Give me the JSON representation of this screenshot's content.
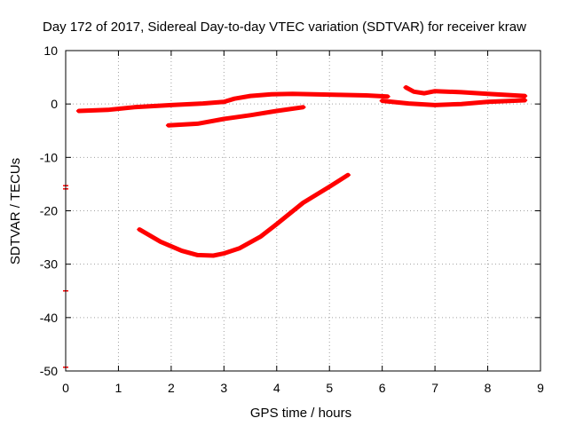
{
  "chart_data": {
    "type": "scatter",
    "title": "Day 172 of 2017, Sidereal Day-to-day VTEC variation (SDTVAR) for receiver kraw",
    "xlabel": "GPS time / hours",
    "ylabel": "SDTVAR / TECUs",
    "xlim": [
      0,
      9
    ],
    "ylim": [
      -50,
      10
    ],
    "xticks": [
      0,
      1,
      2,
      3,
      4,
      5,
      6,
      7,
      8,
      9
    ],
    "yticks": [
      10,
      0,
      -10,
      -20,
      -30,
      -40,
      -50
    ],
    "grid": true,
    "legend": "none",
    "color": "#ff0000",
    "series": [
      {
        "x": [
          0.25,
          0.8,
          1.3,
          2.0,
          2.6,
          3.0,
          3.2,
          3.5,
          3.9,
          4.3,
          4.7,
          5.2,
          5.7,
          6.1
        ],
        "y": [
          -1.3,
          -1.1,
          -0.6,
          -0.2,
          0.1,
          0.4,
          1.0,
          1.5,
          1.8,
          1.9,
          1.8,
          1.7,
          1.6,
          1.4
        ]
      },
      {
        "x": [
          6.0,
          6.5,
          7.0,
          7.5,
          8.0,
          8.7
        ],
        "y": [
          0.6,
          0.1,
          -0.2,
          0.0,
          0.4,
          0.7
        ]
      },
      {
        "x": [
          6.45,
          6.6,
          6.8,
          7.0,
          7.5,
          8.0,
          8.7
        ],
        "y": [
          3.1,
          2.3,
          2.0,
          2.4,
          2.2,
          1.9,
          1.5
        ]
      },
      {
        "x": [
          1.95,
          2.5,
          3.0,
          3.5,
          4.0,
          4.5
        ],
        "y": [
          -4.0,
          -3.7,
          -2.8,
          -2.1,
          -1.3,
          -0.6
        ]
      },
      {
        "x": [
          1.4,
          1.8,
          2.2,
          2.5,
          2.8,
          3.0,
          3.3,
          3.7,
          4.0,
          4.5,
          5.0,
          5.35
        ],
        "y": [
          -23.5,
          -25.8,
          -27.5,
          -28.3,
          -28.4,
          -28.0,
          -27.0,
          -24.8,
          -22.5,
          -18.5,
          -15.5,
          -13.3
        ]
      },
      {
        "x": [
          0,
          0,
          0,
          0
        ],
        "y": [
          -15.3,
          -15.9,
          -35.0,
          -49.3
        ]
      }
    ]
  }
}
